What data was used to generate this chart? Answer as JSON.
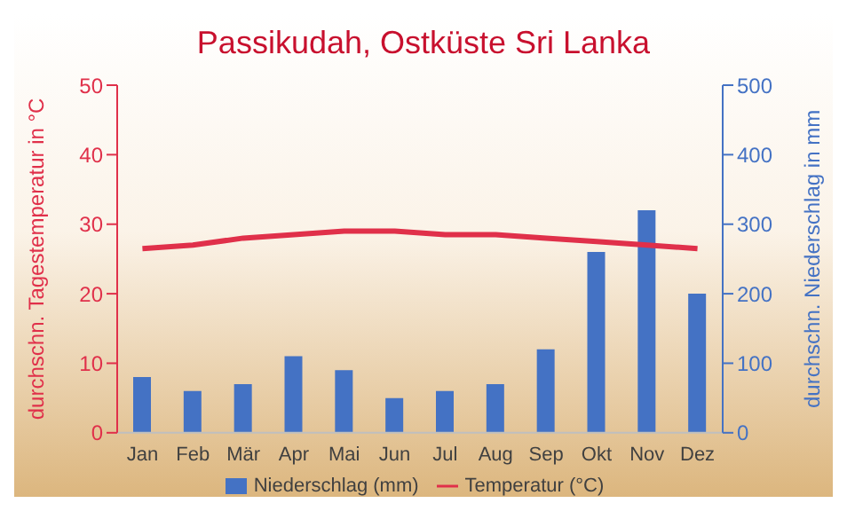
{
  "chart_data": {
    "type": "bar",
    "title": "Passikudah, Ostküste Sri Lanka",
    "ylabel": "durchschn. Tagestemperatur in °C",
    "y2label": "durchschn. Niederschlag in mm",
    "categories": [
      "Jan",
      "Feb",
      "Mär",
      "Apr",
      "Mai",
      "Jun",
      "Jul",
      "Aug",
      "Sep",
      "Okt",
      "Nov",
      "Dez"
    ],
    "series": [
      {
        "name": "Niederschlag (mm)",
        "axis": "y2",
        "color": "#4472c4",
        "values": [
          80,
          60,
          70,
          110,
          90,
          50,
          60,
          70,
          120,
          260,
          320,
          200
        ]
      },
      {
        "name": "Temperatur (°C)",
        "type": "line",
        "color": "#e0304a",
        "values": [
          26.5,
          27,
          28,
          28.5,
          29,
          29,
          28.5,
          28.5,
          28,
          27.5,
          27,
          26.5
        ]
      }
    ],
    "ylim": [
      0,
      50
    ],
    "yticks": [
      0,
      10,
      20,
      30,
      40,
      50
    ],
    "y2lim": [
      0,
      500
    ],
    "y2ticks": [
      0,
      100,
      200,
      300,
      400,
      500
    ],
    "legend": "bottom",
    "marker": "none"
  }
}
